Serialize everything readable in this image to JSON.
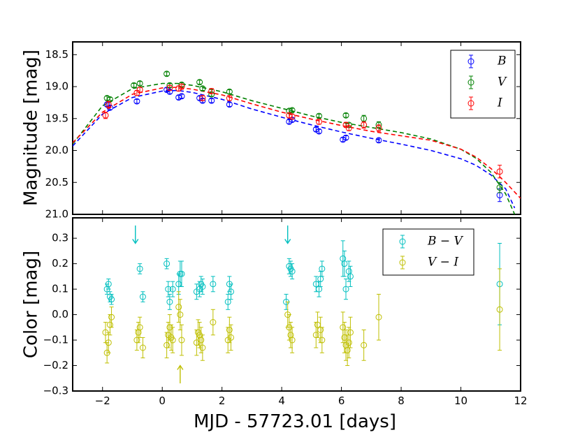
{
  "chart_data": [
    {
      "type": "scatter",
      "ylabel": "Magnitude [mag]",
      "xlim": [
        -3,
        12
      ],
      "ylim": [
        21.0,
        18.3
      ],
      "y_inverted": true,
      "yticks": [
        "18.5",
        "19.0",
        "19.5",
        "20.0",
        "20.5",
        "21.0"
      ],
      "legend_position": "top-right",
      "legend": [
        "B",
        "V",
        "I"
      ],
      "colors": {
        "B": "#0000ff",
        "V": "#008000",
        "I": "#ff0000"
      },
      "series": [
        {
          "name": "B",
          "x": [
            -1.85,
            -1.75,
            -0.85,
            0.15,
            0.25,
            0.55,
            0.65,
            1.25,
            1.35,
            1.65,
            2.25,
            4.25,
            4.35,
            5.15,
            5.25,
            6.05,
            6.15,
            7.25,
            11.3
          ],
          "y": [
            19.28,
            19.33,
            19.23,
            19.05,
            19.08,
            19.17,
            19.15,
            19.18,
            19.22,
            19.22,
            19.28,
            19.55,
            19.52,
            19.67,
            19.7,
            19.83,
            19.8,
            19.84,
            20.7
          ],
          "yerr": [
            0.03,
            0.03,
            0.03,
            0.03,
            0.03,
            0.03,
            0.03,
            0.03,
            0.03,
            0.03,
            0.03,
            0.03,
            0.03,
            0.03,
            0.03,
            0.03,
            0.03,
            0.03,
            0.1
          ]
        },
        {
          "name": "V",
          "x": [
            -1.85,
            -1.75,
            -0.95,
            -0.75,
            0.15,
            0.25,
            0.65,
            1.25,
            1.35,
            1.65,
            2.25,
            4.25,
            4.35,
            5.25,
            6.15,
            6.25,
            6.75,
            7.25,
            11.3
          ],
          "y": [
            19.18,
            19.2,
            18.98,
            18.95,
            18.8,
            18.98,
            18.97,
            18.93,
            19.03,
            19.12,
            19.08,
            19.38,
            19.37,
            19.46,
            19.45,
            19.6,
            19.5,
            19.6,
            20.58
          ],
          "yerr": [
            0.03,
            0.03,
            0.03,
            0.03,
            0.03,
            0.03,
            0.03,
            0.03,
            0.03,
            0.03,
            0.03,
            0.03,
            0.03,
            0.03,
            0.03,
            0.03,
            0.05,
            0.05,
            0.08
          ]
        },
        {
          "name": "I",
          "x": [
            -1.9,
            -1.8,
            -0.85,
            -0.75,
            0.25,
            0.55,
            0.65,
            1.35,
            1.65,
            2.25,
            4.25,
            4.35,
            5.25,
            6.15,
            6.25,
            6.75,
            7.25,
            11.3
          ],
          "y": [
            19.45,
            19.28,
            19.1,
            19.05,
            19.02,
            19.03,
            19.0,
            19.18,
            19.07,
            19.18,
            19.45,
            19.47,
            19.55,
            19.6,
            19.65,
            19.6,
            19.65,
            20.33
          ],
          "yerr": [
            0.05,
            0.05,
            0.04,
            0.04,
            0.04,
            0.04,
            0.04,
            0.04,
            0.04,
            0.04,
            0.04,
            0.04,
            0.04,
            0.04,
            0.04,
            0.05,
            0.05,
            0.1
          ]
        }
      ],
      "model_curves": [
        {
          "name": "B",
          "x": [
            -3,
            -2,
            -1,
            0,
            0.5,
            1,
            2,
            3,
            4,
            5,
            6,
            7,
            8,
            9,
            10,
            10.5,
            11,
            11.5,
            11.8
          ],
          "y": [
            19.93,
            19.43,
            19.17,
            19.07,
            19.06,
            19.09,
            19.2,
            19.35,
            19.48,
            19.6,
            19.71,
            19.81,
            19.9,
            20.0,
            20.13,
            20.23,
            20.38,
            20.6,
            20.9
          ]
        },
        {
          "name": "V",
          "x": [
            -3,
            -2,
            -1,
            0,
            0.5,
            1,
            2,
            3,
            4,
            5,
            6,
            7,
            8,
            9,
            10,
            10.5,
            11,
            11.5,
            11.8
          ],
          "y": [
            19.9,
            19.3,
            19.03,
            18.95,
            18.95,
            18.98,
            19.08,
            19.22,
            19.34,
            19.46,
            19.56,
            19.64,
            19.72,
            19.82,
            19.98,
            20.12,
            20.34,
            20.68,
            21.0
          ]
        },
        {
          "name": "I",
          "x": [
            -3,
            -2,
            -1,
            0,
            0.5,
            1,
            2,
            3,
            4,
            5,
            6,
            7,
            8,
            9,
            10,
            10.5,
            11,
            11.5,
            12
          ],
          "y": [
            19.88,
            19.4,
            19.12,
            19.02,
            19.01,
            19.04,
            19.13,
            19.27,
            19.4,
            19.51,
            19.61,
            19.7,
            19.77,
            19.84,
            19.98,
            20.1,
            20.28,
            20.5,
            20.75
          ]
        }
      ]
    },
    {
      "type": "scatter",
      "xlabel": "MJD - 57723.01 [days]",
      "ylabel": "Color [mag]",
      "xlim": [
        -3,
        12
      ],
      "ylim": [
        -0.3,
        0.38
      ],
      "xticks": [
        "−2",
        "0",
        "2",
        "4",
        "6",
        "8",
        "10",
        "12"
      ],
      "yticks": [
        "0.3",
        "0.2",
        "0.1",
        "0.0",
        "−0.1",
        "−0.2",
        "−0.3"
      ],
      "legend_position": "top-right",
      "legend": [
        "B − V",
        "V − I"
      ],
      "colors": {
        "B-V": "#00bfbf",
        "V-I": "#bfbf00"
      },
      "series": [
        {
          "name": "B − V",
          "x": [
            -1.85,
            -1.8,
            -1.75,
            -1.7,
            -0.75,
            -0.65,
            0.15,
            0.2,
            0.25,
            0.35,
            0.55,
            0.6,
            0.65,
            1.15,
            1.25,
            1.3,
            1.35,
            1.7,
            2.2,
            2.25,
            2.3,
            4.15,
            4.25,
            4.3,
            4.35,
            5.15,
            5.25,
            5.3,
            5.35,
            6.05,
            6.1,
            6.15,
            6.25,
            6.3,
            11.3
          ],
          "y": [
            0.1,
            0.12,
            0.07,
            0.06,
            0.18,
            0.07,
            0.2,
            0.1,
            0.05,
            0.1,
            0.12,
            0.16,
            0.16,
            0.09,
            0.1,
            0.12,
            0.11,
            0.12,
            0.05,
            0.12,
            0.09,
            0.05,
            0.19,
            0.18,
            0.17,
            0.12,
            0.1,
            0.14,
            0.18,
            0.22,
            0.2,
            0.1,
            0.17,
            0.15,
            0.12
          ],
          "yerr": [
            0.02,
            0.02,
            0.02,
            0.02,
            0.02,
            0.02,
            0.02,
            0.03,
            0.03,
            0.03,
            0.04,
            0.05,
            0.05,
            0.03,
            0.03,
            0.03,
            0.03,
            0.03,
            0.03,
            0.03,
            0.03,
            0.03,
            0.03,
            0.03,
            0.03,
            0.03,
            0.03,
            0.03,
            0.03,
            0.07,
            0.05,
            0.04,
            0.04,
            0.04,
            0.16
          ]
        },
        {
          "name": "V − I",
          "x": [
            -1.9,
            -1.85,
            -1.8,
            -1.75,
            -1.7,
            -0.85,
            -0.8,
            -0.75,
            -0.65,
            0.15,
            0.2,
            0.25,
            0.3,
            0.35,
            0.55,
            0.6,
            0.65,
            1.15,
            1.2,
            1.25,
            1.3,
            1.35,
            1.7,
            2.2,
            2.25,
            2.3,
            4.2,
            4.25,
            4.3,
            4.35,
            5.15,
            5.2,
            5.3,
            5.35,
            6.05,
            6.1,
            6.15,
            6.2,
            6.25,
            6.3,
            6.75,
            7.25,
            11.3
          ],
          "y": [
            -0.07,
            -0.15,
            -0.11,
            -0.04,
            -0.01,
            -0.1,
            -0.07,
            -0.05,
            -0.13,
            -0.12,
            -0.08,
            -0.05,
            -0.09,
            -0.1,
            0.03,
            0.0,
            -0.1,
            -0.11,
            -0.07,
            -0.08,
            -0.1,
            -0.13,
            -0.03,
            -0.1,
            -0.06,
            -0.09,
            0.0,
            -0.05,
            -0.08,
            -0.1,
            -0.08,
            -0.04,
            -0.06,
            -0.1,
            -0.05,
            -0.09,
            -0.12,
            -0.14,
            -0.11,
            -0.07,
            -0.12,
            -0.01,
            0.02
          ],
          "yerr": [
            0.04,
            0.04,
            0.04,
            0.04,
            0.04,
            0.04,
            0.04,
            0.04,
            0.04,
            0.05,
            0.05,
            0.05,
            0.05,
            0.05,
            0.06,
            0.06,
            0.06,
            0.05,
            0.05,
            0.05,
            0.05,
            0.05,
            0.05,
            0.05,
            0.05,
            0.05,
            0.05,
            0.05,
            0.05,
            0.05,
            0.05,
            0.05,
            0.05,
            0.05,
            0.06,
            0.06,
            0.06,
            0.06,
            0.06,
            0.06,
            0.06,
            0.09,
            0.16
          ]
        }
      ],
      "arrows": [
        {
          "x": -0.9,
          "from": 0.35,
          "to": 0.28,
          "color": "#00bfbf"
        },
        {
          "x": 4.2,
          "from": 0.35,
          "to": 0.28,
          "color": "#00bfbf"
        },
        {
          "x": 0.6,
          "from": -0.27,
          "to": -0.2,
          "color": "#bfbf00"
        }
      ]
    }
  ]
}
